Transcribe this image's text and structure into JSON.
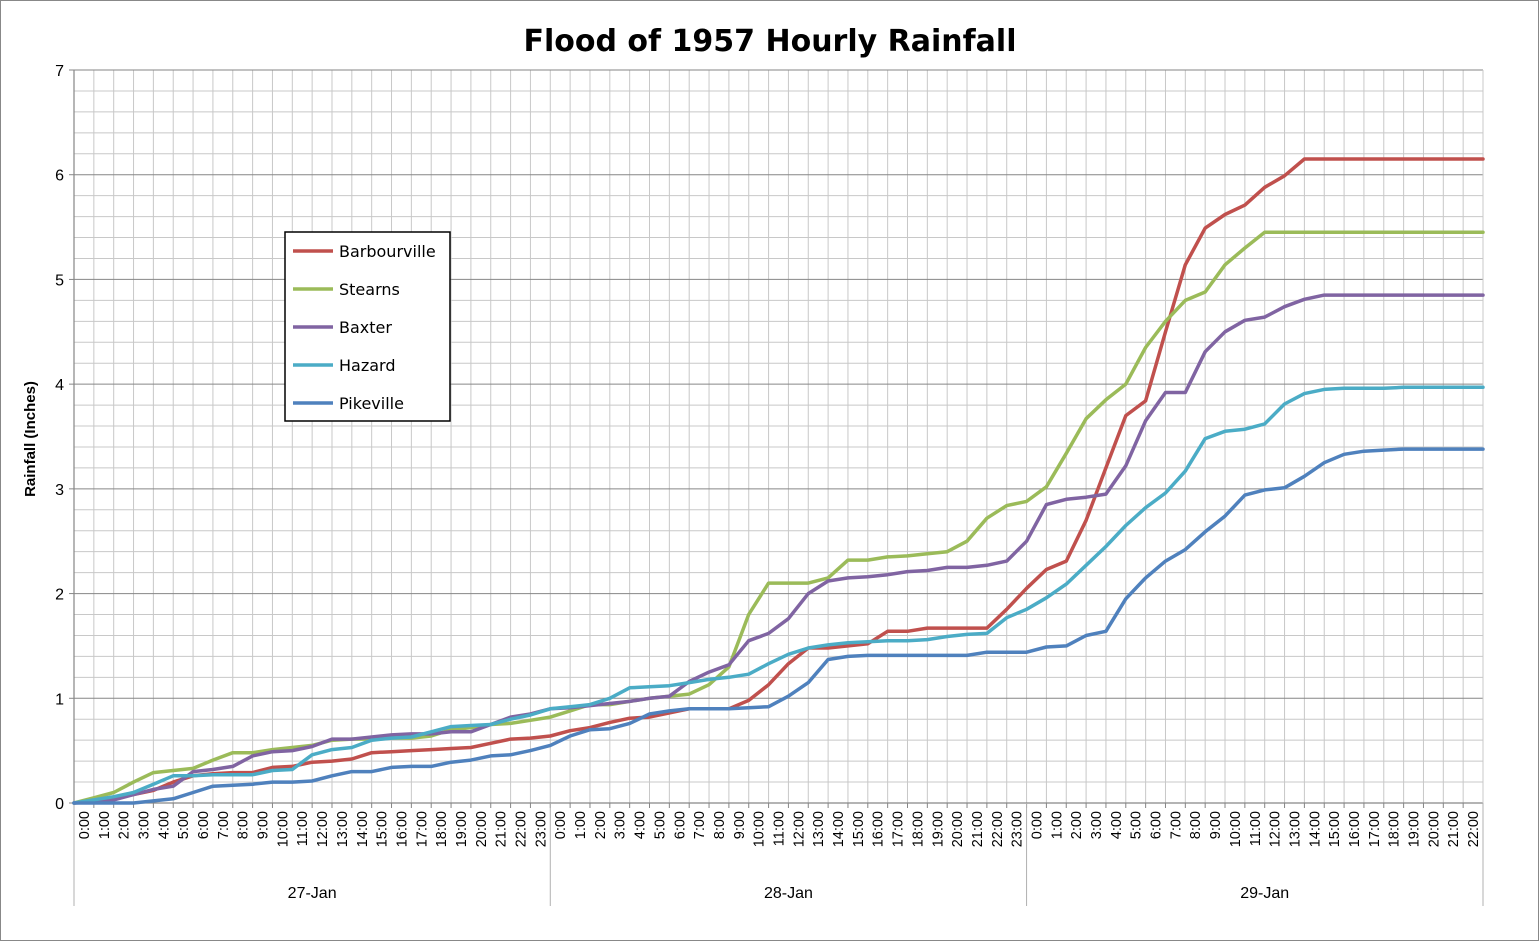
{
  "chart_data": {
    "type": "line",
    "title": "Flood of 1957 Hourly Rainfall",
    "xlabel": "",
    "ylabel": "Rainfall (Inches)",
    "ylim": [
      0,
      7
    ],
    "y_ticks": [
      "0",
      "1",
      "2",
      "3",
      "4",
      "5",
      "6",
      "7"
    ],
    "grid": "major and minor gridlines",
    "legend_position": "upper-left inside plot",
    "hour_labels": [
      "0:00",
      "1:00",
      "2:00",
      "3:00",
      "4:00",
      "5:00",
      "6:00",
      "7:00",
      "8:00",
      "9:00",
      "10:00",
      "11:00",
      "12:00",
      "13:00",
      "14:00",
      "15:00",
      "16:00",
      "17:00",
      "18:00",
      "19:00",
      "20:00",
      "21:00",
      "22:00",
      "23:00"
    ],
    "days": [
      "27-Jan",
      "28-Jan",
      "29-Jan"
    ],
    "series": [
      {
        "name": "Barbourville",
        "color": "#C0504D",
        "values": [
          0,
          0.02,
          0.05,
          0.08,
          0.12,
          0.2,
          0.26,
          0.28,
          0.29,
          0.29,
          0.34,
          0.35,
          0.39,
          0.4,
          0.42,
          0.48,
          0.49,
          0.5,
          0.51,
          0.52,
          0.53,
          0.57,
          0.61,
          0.62,
          0.64,
          0.69,
          0.72,
          0.77,
          0.81,
          0.82,
          0.86,
          0.9,
          0.9,
          0.9,
          0.98,
          1.13,
          1.33,
          1.48,
          1.48,
          1.5,
          1.52,
          1.64,
          1.64,
          1.67,
          1.67,
          1.67,
          1.67,
          1.85,
          2.05,
          2.23,
          2.31,
          2.7,
          3.2,
          3.7,
          3.84,
          4.5,
          5.14,
          5.49,
          5.62,
          5.71,
          5.88,
          5.99,
          6.15,
          6.15,
          6.15,
          6.15,
          6.15,
          6.15,
          6.15,
          6.15,
          6.15,
          6.15
        ]
      },
      {
        "name": "Stearns",
        "color": "#9BBB59",
        "values": [
          0,
          0.05,
          0.1,
          0.2,
          0.29,
          0.31,
          0.33,
          0.41,
          0.48,
          0.48,
          0.51,
          0.53,
          0.55,
          0.6,
          0.61,
          0.61,
          0.62,
          0.62,
          0.64,
          0.7,
          0.72,
          0.75,
          0.76,
          0.79,
          0.82,
          0.88,
          0.94,
          0.94,
          0.97,
          1.0,
          1.02,
          1.04,
          1.13,
          1.3,
          1.8,
          2.1,
          2.1,
          2.1,
          2.15,
          2.32,
          2.32,
          2.35,
          2.36,
          2.38,
          2.4,
          2.5,
          2.72,
          2.84,
          2.88,
          3.02,
          3.34,
          3.67,
          3.85,
          4.0,
          4.35,
          4.6,
          4.8,
          4.88,
          5.14,
          5.3,
          5.45,
          5.45,
          5.45,
          5.45,
          5.45,
          5.45,
          5.45,
          5.45,
          5.45,
          5.45,
          5.45,
          5.45
        ]
      },
      {
        "name": "Baxter",
        "color": "#8064A2",
        "values": [
          0,
          0.01,
          0.03,
          0.08,
          0.13,
          0.16,
          0.3,
          0.32,
          0.35,
          0.45,
          0.49,
          0.5,
          0.54,
          0.61,
          0.61,
          0.63,
          0.65,
          0.66,
          0.66,
          0.68,
          0.68,
          0.75,
          0.82,
          0.85,
          0.9,
          0.91,
          0.93,
          0.95,
          0.97,
          1.0,
          1.02,
          1.16,
          1.25,
          1.32,
          1.55,
          1.62,
          1.76,
          2.0,
          2.12,
          2.15,
          2.16,
          2.18,
          2.21,
          2.22,
          2.25,
          2.25,
          2.27,
          2.31,
          2.5,
          2.85,
          2.9,
          2.92,
          2.95,
          3.22,
          3.65,
          3.92,
          3.92,
          4.31,
          4.5,
          4.61,
          4.64,
          4.74,
          4.81,
          4.85,
          4.85,
          4.85,
          4.85,
          4.85,
          4.85,
          4.85,
          4.85,
          4.85
        ]
      },
      {
        "name": "Hazard",
        "color": "#4BACC6",
        "values": [
          0,
          0.03,
          0.06,
          0.1,
          0.18,
          0.26,
          0.26,
          0.27,
          0.27,
          0.27,
          0.31,
          0.32,
          0.46,
          0.51,
          0.53,
          0.6,
          0.62,
          0.63,
          0.68,
          0.73,
          0.74,
          0.75,
          0.8,
          0.84,
          0.9,
          0.92,
          0.94,
          1.0,
          1.1,
          1.11,
          1.12,
          1.15,
          1.18,
          1.2,
          1.23,
          1.33,
          1.42,
          1.48,
          1.51,
          1.53,
          1.54,
          1.55,
          1.55,
          1.56,
          1.59,
          1.61,
          1.62,
          1.77,
          1.85,
          1.96,
          2.09,
          2.27,
          2.45,
          2.65,
          2.82,
          2.96,
          3.17,
          3.48,
          3.55,
          3.57,
          3.62,
          3.81,
          3.91,
          3.95,
          3.96,
          3.96,
          3.96,
          3.97,
          3.97,
          3.97,
          3.97,
          3.97
        ]
      },
      {
        "name": "Pikeville",
        "color": "#4F81BD",
        "values": [
          0,
          0,
          0,
          0,
          0.02,
          0.04,
          0.1,
          0.16,
          0.17,
          0.18,
          0.2,
          0.2,
          0.21,
          0.26,
          0.3,
          0.3,
          0.34,
          0.35,
          0.35,
          0.39,
          0.41,
          0.45,
          0.46,
          0.5,
          0.55,
          0.64,
          0.7,
          0.71,
          0.76,
          0.85,
          0.88,
          0.9,
          0.9,
          0.9,
          0.91,
          0.92,
          1.02,
          1.15,
          1.37,
          1.4,
          1.41,
          1.41,
          1.41,
          1.41,
          1.41,
          1.41,
          1.44,
          1.44,
          1.44,
          1.49,
          1.5,
          1.6,
          1.64,
          1.95,
          2.15,
          2.31,
          2.42,
          2.59,
          2.74,
          2.94,
          2.99,
          3.01,
          3.12,
          3.25,
          3.33,
          3.36,
          3.37,
          3.38,
          3.38,
          3.38,
          3.38,
          3.38
        ]
      }
    ]
  }
}
